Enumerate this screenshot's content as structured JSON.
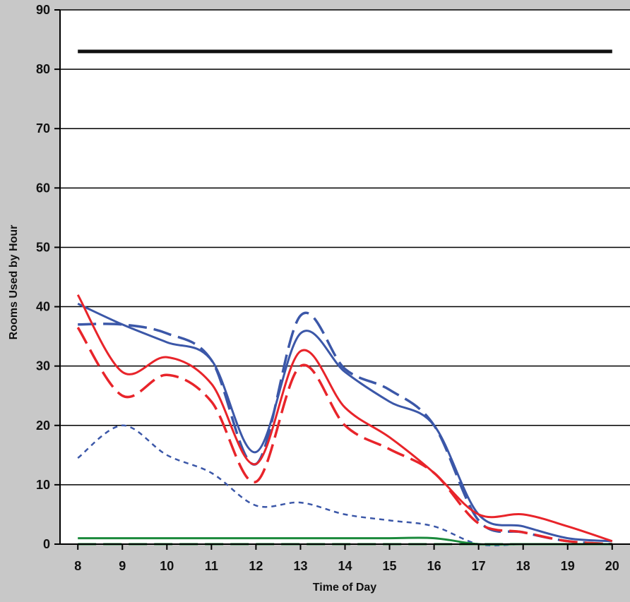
{
  "chart_data": {
    "type": "line",
    "title": "",
    "xlabel": "Time of Day",
    "ylabel": "Rooms Used by Hour",
    "x": [
      8,
      9,
      10,
      11,
      12,
      13,
      14,
      15,
      16,
      17,
      18,
      19,
      20
    ],
    "xlim": [
      7.6,
      20.4
    ],
    "ylim": [
      0,
      90
    ],
    "yticks": [
      0,
      10,
      20,
      30,
      40,
      50,
      60,
      70,
      80,
      90
    ],
    "grid": "horizontal",
    "legend": "none",
    "series": [
      {
        "color": "#111111",
        "dash": "solid",
        "width": 5,
        "values": [
          83,
          83,
          83,
          83,
          83,
          83,
          83,
          83,
          83,
          83,
          83,
          83,
          83
        ]
      },
      {
        "color": "#3b57a8",
        "dash": "solid",
        "width": 3,
        "values": [
          40.5,
          37,
          34,
          31,
          15.5,
          35.5,
          29,
          24,
          20,
          5,
          3,
          1,
          0.5
        ]
      },
      {
        "color": "#3b57a8",
        "dash": "long-dash",
        "width": 3.5,
        "values": [
          37,
          37,
          35.5,
          31,
          13.5,
          38.5,
          29.5,
          26,
          20,
          4,
          2,
          0.5,
          0
        ]
      },
      {
        "color": "#e8242a",
        "dash": "solid",
        "width": 3,
        "values": [
          42,
          29,
          31.5,
          27,
          13.5,
          32.5,
          23,
          18,
          12,
          5,
          5,
          3,
          0.5
        ]
      },
      {
        "color": "#e8242a",
        "dash": "long-dash",
        "width": 3.5,
        "values": [
          36.5,
          25,
          28.5,
          24,
          10.5,
          30,
          20,
          16,
          12,
          3.5,
          2,
          0.5,
          0
        ]
      },
      {
        "color": "#3b57a8",
        "dash": "short-dash",
        "width": 2.5,
        "values": [
          14.5,
          20,
          15,
          12,
          6.5,
          7,
          5,
          4,
          3,
          0,
          0,
          0,
          0
        ]
      },
      {
        "color": "#1b8a3c",
        "dash": "solid",
        "width": 3,
        "values": [
          1,
          1,
          1,
          1,
          1,
          1,
          1,
          1,
          1,
          0,
          0,
          0,
          0
        ]
      },
      {
        "color": "#1b8a3c",
        "dash": "long-dash",
        "width": 3,
        "values": [
          0,
          0,
          0,
          0,
          0,
          0,
          0,
          0,
          0,
          0,
          0,
          0,
          0
        ]
      }
    ]
  }
}
